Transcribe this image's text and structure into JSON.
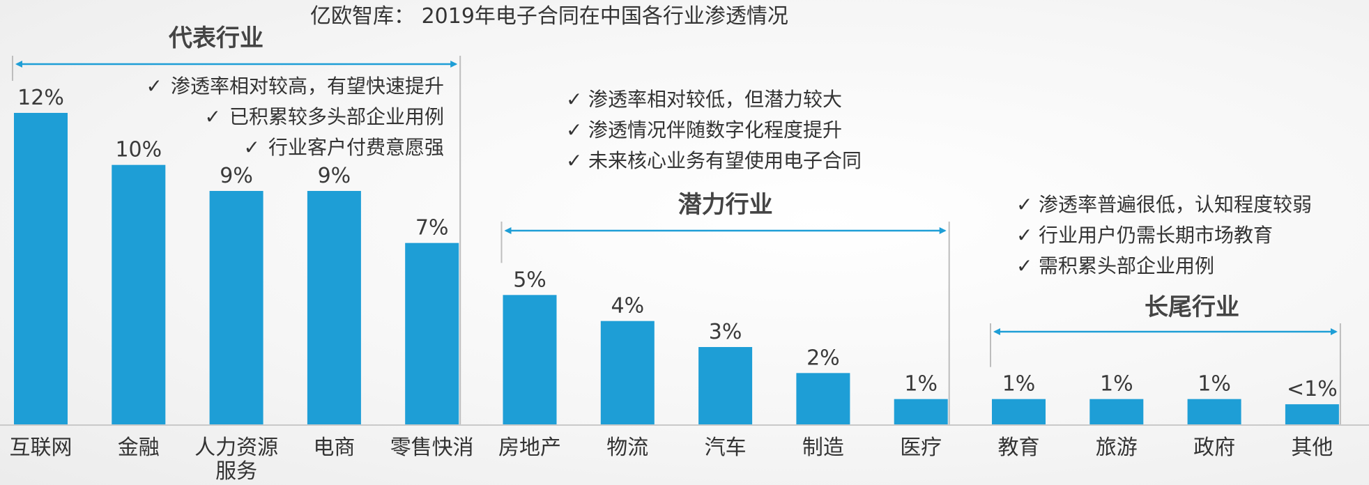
{
  "title": "亿欧智库： 2019年电子合同在中国各行业渗透情况",
  "colors": {
    "bar": "#1e9ed6",
    "arrow": "#1e9ed6",
    "text": "#333333"
  },
  "check_icon": "check-icon",
  "chart_data": {
    "type": "bar",
    "categories": [
      "互联网",
      "金融",
      "人力资源服务",
      "电商",
      "零售快消",
      "房地产",
      "物流",
      "汽车",
      "制造",
      "医疗",
      "教育",
      "旅游",
      "政府",
      "其他"
    ],
    "values": [
      12,
      10,
      9,
      9,
      7,
      5,
      4,
      3,
      2,
      1,
      1,
      1,
      1,
      0.8
    ],
    "value_labels": [
      "12%",
      "10%",
      "9%",
      "9%",
      "7%",
      "5%",
      "4%",
      "3%",
      "2%",
      "1%",
      "1%",
      "1%",
      "1%",
      "<1%"
    ],
    "ylim": [
      0,
      12
    ],
    "grid": false
  },
  "groups": [
    {
      "name": "代表行业",
      "first_index": 0,
      "last_index": 4,
      "notes": [
        "渗透率相对较高，有望快速提升",
        "已积累较多头部企业用例",
        "行业客户付费意愿强"
      ]
    },
    {
      "name": "潜力行业",
      "first_index": 5,
      "last_index": 9,
      "notes": [
        "渗透率相对较低，但潜力较大",
        "渗透情况伴随数字化程度提升",
        "未来核心业务有望使用电子合同"
      ]
    },
    {
      "name": "长尾行业",
      "first_index": 10,
      "last_index": 13,
      "notes": [
        "渗透率普遍很低，认知程度较弱",
        "行业用户仍需长期市场教育",
        "需积累头部企业用例"
      ]
    }
  ]
}
